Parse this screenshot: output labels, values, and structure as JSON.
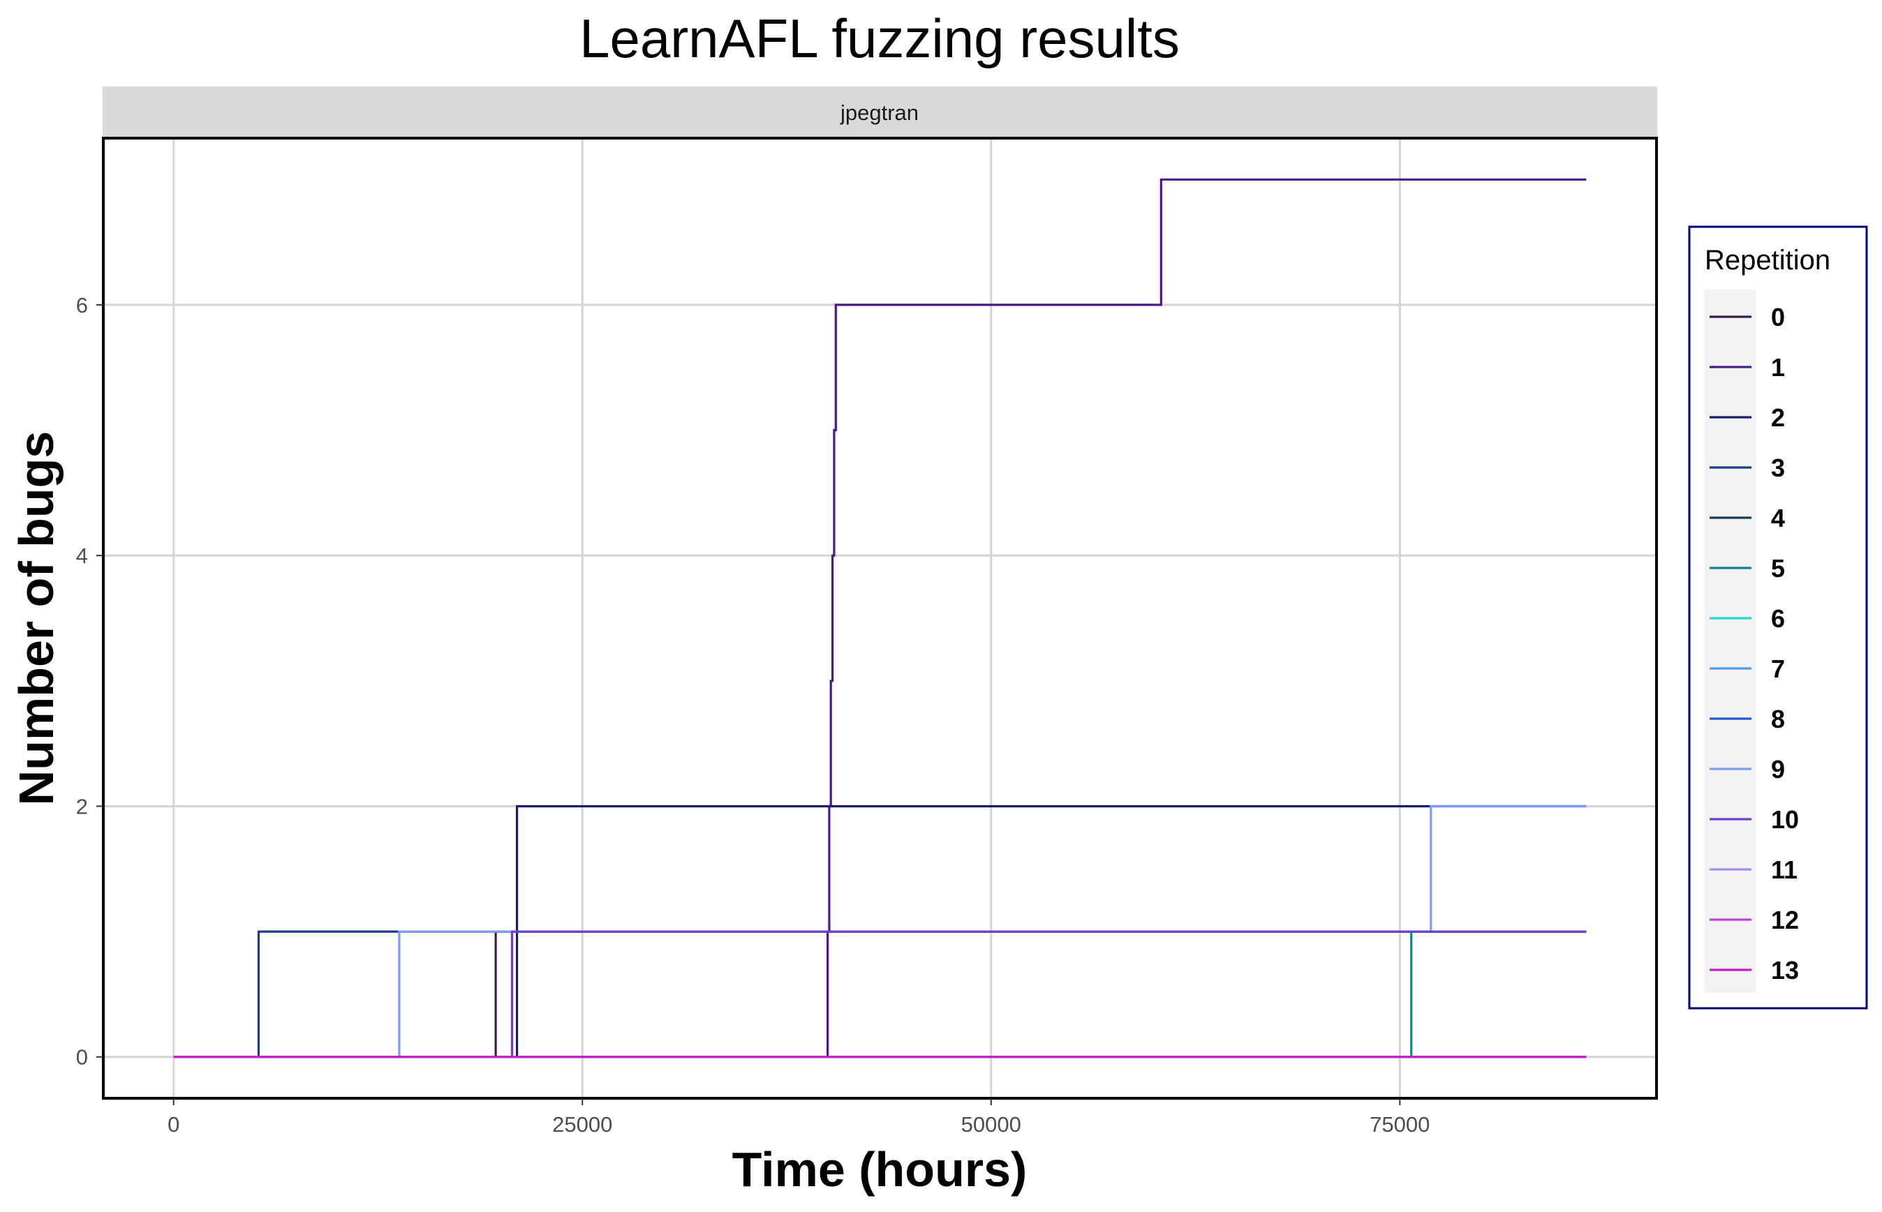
{
  "chart_data": {
    "type": "line",
    "title": "LearnAFL fuzzing results",
    "facet": "jpegtran",
    "xlabel": "Time (hours)",
    "ylabel": "Number of bugs",
    "xlim": [
      -4300,
      90700
    ],
    "ylim": [
      -0.33,
      7.33
    ],
    "x_ticks": [
      0,
      25000,
      50000,
      75000
    ],
    "x_tick_labels": [
      "0",
      "25000",
      "50000",
      "75000"
    ],
    "y_ticks": [
      0,
      2,
      4,
      6
    ],
    "y_tick_labels": [
      "0",
      "2",
      "4",
      "6"
    ],
    "grid": true,
    "step": true,
    "x_end": 86400,
    "legend": {
      "title": "Repetition",
      "placement": "right"
    },
    "series": [
      {
        "name": "0",
        "color": "#3d1a4a",
        "x": [
          0,
          19700
        ],
        "y": [
          0,
          1
        ]
      },
      {
        "name": "1",
        "color": "#4b1a8a",
        "x": [
          0,
          40000,
          40100,
          40200,
          40300,
          40400,
          40500,
          40600,
          60300,
          60400
        ],
        "y": [
          0,
          1,
          2,
          3,
          4,
          5,
          6,
          6,
          6,
          7
        ]
      },
      {
        "name": "2",
        "color": "#1c1c6e",
        "x": [
          0,
          21000,
          40050
        ],
        "y": [
          0,
          2,
          2
        ]
      },
      {
        "name": "3",
        "color": "#1b3c8c",
        "x": [
          0,
          5200
        ],
        "y": [
          0,
          1
        ]
      },
      {
        "name": "4",
        "color": "#1a3a52",
        "x": [
          0
        ],
        "y": [
          0
        ]
      },
      {
        "name": "5",
        "color": "#118587",
        "x": [
          0,
          75700
        ],
        "y": [
          0,
          1
        ]
      },
      {
        "name": "6",
        "color": "#2bd9c9",
        "x": [
          0
        ],
        "y": [
          0
        ]
      },
      {
        "name": "7",
        "color": "#4b9be8",
        "x": [
          0
        ],
        "y": [
          0
        ]
      },
      {
        "name": "8",
        "color": "#1f58d6",
        "x": [
          0
        ],
        "y": [
          0
        ]
      },
      {
        "name": "9",
        "color": "#7f9cf2",
        "x": [
          0,
          13800,
          76900
        ],
        "y": [
          0,
          1,
          2
        ]
      },
      {
        "name": "10",
        "color": "#6a3fd8",
        "x": [
          0,
          20700
        ],
        "y": [
          0,
          1
        ]
      },
      {
        "name": "11",
        "color": "#a98be8",
        "x": [
          0
        ],
        "y": [
          0
        ]
      },
      {
        "name": "12",
        "color": "#bf3fe0",
        "x": [
          0
        ],
        "y": [
          0
        ]
      },
      {
        "name": "13",
        "color": "#c61ec6",
        "x": [
          0
        ],
        "y": [
          0
        ]
      }
    ]
  }
}
